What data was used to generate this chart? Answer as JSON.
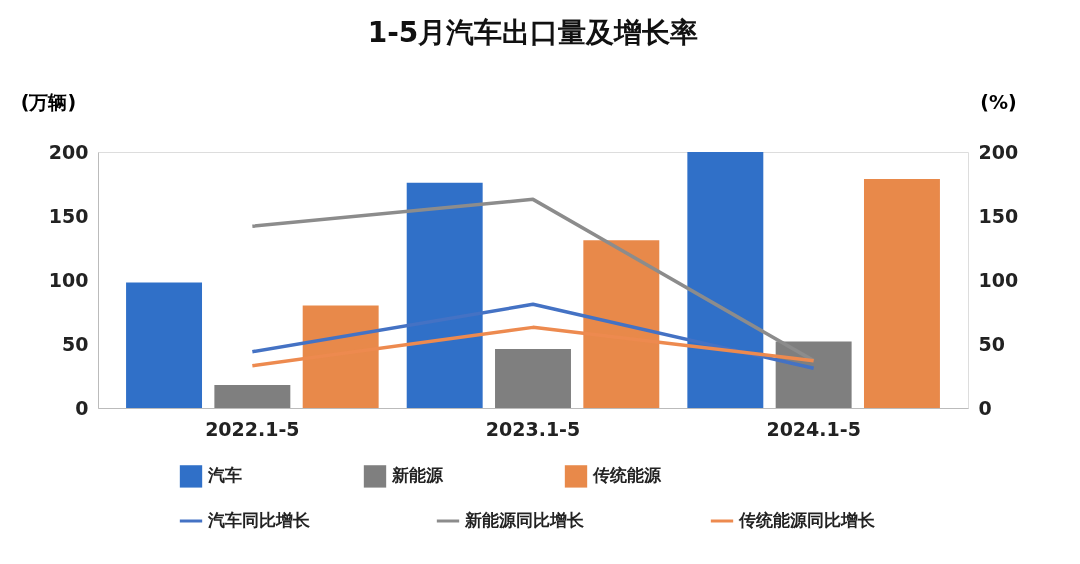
{
  "chart_data": {
    "type": "bar",
    "title": "1-5月汽车出口量及增长率",
    "ylabel": "(万辆)",
    "y2label": "(%)",
    "categories": [
      "2022.1-5",
      "2023.1-5",
      "2024.1-5"
    ],
    "series": [
      {
        "name": "汽车",
        "color": "#3070c8",
        "values": [
          98,
          176,
          200
        ]
      },
      {
        "name": "新能源",
        "color": "#7f7f7f",
        "values": [
          18,
          46,
          52
        ]
      },
      {
        "name": "传统能源",
        "color": "#e8894a",
        "values": [
          80,
          131,
          179
        ]
      },
      {
        "name": "汽车同比增长",
        "type": "line",
        "axis": "y2",
        "color": "#4472c4",
        "values": [
          44,
          81,
          31
        ]
      },
      {
        "name": "新能源同比增长",
        "type": "line",
        "axis": "y2",
        "color": "#8c8c8c",
        "values": [
          142,
          163,
          37
        ]
      },
      {
        "name": "传统能源同比增长",
        "type": "line",
        "axis": "y2",
        "color": "#ed8a4f",
        "values": [
          33,
          63,
          37
        ]
      }
    ],
    "ylim": [
      0,
      200
    ],
    "yticks": [
      0,
      50,
      100,
      150,
      200
    ],
    "y2lim": [
      0,
      200
    ],
    "y2ticks": [
      0,
      50,
      100,
      150,
      200
    ],
    "grid": false,
    "legend": "bottom",
    "marker": "none",
    "line_style": "solid"
  }
}
